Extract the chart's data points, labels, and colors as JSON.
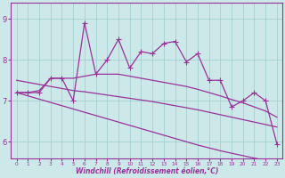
{
  "xlabel": "Windchill (Refroidissement éolien,°C)",
  "bg_color": "#cce8e8",
  "line_color": "#993399",
  "grid_color": "#99cccc",
  "line_width": 0.9,
  "marker": "+",
  "marker_size": 4,
  "xlim": [
    -0.5,
    23.5
  ],
  "ylim": [
    5.6,
    9.4
  ],
  "yticks": [
    6,
    7,
    8,
    9
  ],
  "xticks": [
    0,
    1,
    2,
    3,
    4,
    5,
    6,
    7,
    8,
    9,
    10,
    11,
    12,
    13,
    14,
    15,
    16,
    17,
    18,
    19,
    20,
    21,
    22,
    23
  ],
  "x": [
    0,
    1,
    2,
    3,
    4,
    5,
    6,
    7,
    8,
    9,
    10,
    11,
    12,
    13,
    14,
    15,
    16,
    17,
    18,
    19,
    20,
    21,
    22,
    23
  ],
  "spiky_y": [
    7.2,
    7.2,
    7.2,
    7.55,
    7.55,
    7.0,
    8.9,
    7.65,
    8.0,
    8.5,
    7.8,
    8.2,
    8.15,
    8.4,
    8.45,
    7.95,
    8.15,
    7.5,
    7.5,
    6.85,
    7.0,
    7.2,
    7.0,
    5.95
  ],
  "smooth_y": [
    7.2,
    7.2,
    7.25,
    7.55,
    7.55,
    7.55,
    7.6,
    7.65,
    7.65,
    7.65,
    7.6,
    7.55,
    7.5,
    7.45,
    7.4,
    7.35,
    7.28,
    7.2,
    7.12,
    7.03,
    6.95,
    6.85,
    6.75,
    6.6
  ],
  "trend_upper_y": [
    7.5,
    7.45,
    7.4,
    7.35,
    7.3,
    7.25,
    7.22,
    7.18,
    7.14,
    7.1,
    7.06,
    7.02,
    6.98,
    6.93,
    6.88,
    6.83,
    6.78,
    6.72,
    6.66,
    6.6,
    6.54,
    6.48,
    6.42,
    6.36
  ],
  "trend_lower_y": [
    7.2,
    7.12,
    7.04,
    6.96,
    6.88,
    6.8,
    6.72,
    6.64,
    6.56,
    6.48,
    6.4,
    6.32,
    6.24,
    6.16,
    6.08,
    6.0,
    5.92,
    5.85,
    5.78,
    5.72,
    5.66,
    5.6,
    5.55,
    5.5
  ]
}
